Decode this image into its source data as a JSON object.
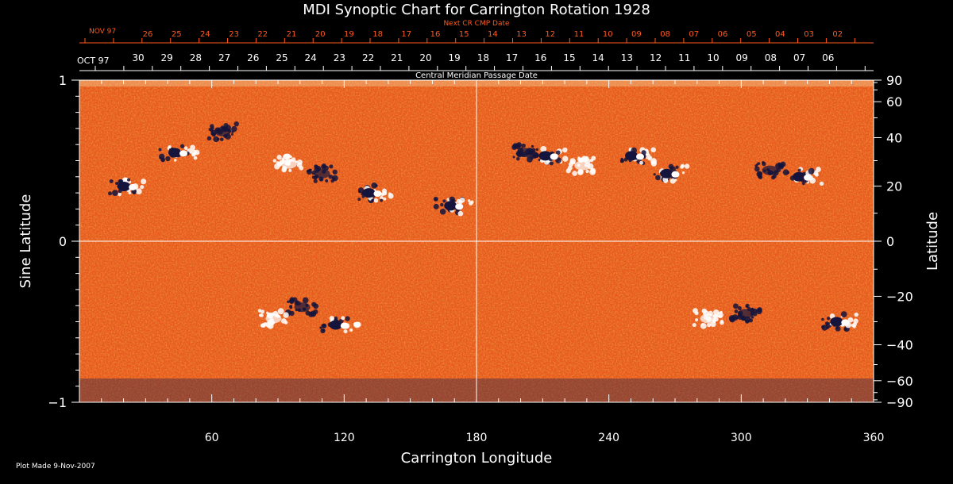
{
  "colors": {
    "background": "#000000",
    "text": "#ffffff",
    "next_cr": "#ff5a1e",
    "map_base": "#e8581e",
    "positive_polarity": "#ffffff",
    "negative_polarity": "#14143c"
  },
  "chart_data": {
    "type": "heatmap",
    "title": "MDI Synoptic Chart for Carrington Rotation 1928",
    "xlabel": "Carrington Longitude",
    "ylabel_left": "Sine Latitude",
    "ylabel_right": "Latitude",
    "xlim": [
      0,
      360
    ],
    "ylim": [
      -1,
      1
    ],
    "x_ticks": [
      60,
      120,
      180,
      240,
      300,
      360
    ],
    "y_ticks_left": [
      {
        "value": 1,
        "label": "1"
      },
      {
        "value": 0,
        "label": "0"
      },
      {
        "value": -1,
        "label": "−1"
      }
    ],
    "y_ticks_right": [
      90,
      60,
      40,
      20,
      0,
      -20,
      -40,
      -60,
      -90
    ],
    "y_ticks_right_labels": [
      "90",
      "60",
      "40",
      "20",
      "0",
      "−20",
      "−40",
      "−60",
      "−90"
    ],
    "next_cr_label": "Next CR CMP Date",
    "next_cr_month": "NOV 97",
    "next_cr_dates": [
      "26",
      "25",
      "24",
      "23",
      "22",
      "21",
      "20",
      "19",
      "18",
      "17",
      "16",
      "15",
      "14",
      "13",
      "12",
      "11",
      "10",
      "09",
      "08",
      "07",
      "06",
      "05",
      "04",
      "03",
      "02"
    ],
    "cmp_month": "OCT 97",
    "cmp_dates": [
      "30",
      "29",
      "28",
      "27",
      "26",
      "25",
      "24",
      "23",
      "22",
      "21",
      "20",
      "19",
      "18",
      "17",
      "16",
      "15",
      "14",
      "13",
      "12",
      "11",
      "10",
      "09",
      "08",
      "07",
      "06"
    ],
    "cmp_label": "Central Meridian Passage Date",
    "plot_made": "Plot Made  9-Nov-2007",
    "active_regions": [
      {
        "lon": 22,
        "sinlat": 0.34,
        "polarity": "bipole"
      },
      {
        "lon": 45,
        "sinlat": 0.55,
        "polarity": "bipole"
      },
      {
        "lon": 65,
        "sinlat": 0.68,
        "polarity": "negative"
      },
      {
        "lon": 95,
        "sinlat": 0.48,
        "polarity": "positive"
      },
      {
        "lon": 110,
        "sinlat": 0.42,
        "polarity": "negative"
      },
      {
        "lon": 133,
        "sinlat": 0.3,
        "polarity": "bipole"
      },
      {
        "lon": 170,
        "sinlat": 0.22,
        "polarity": "bipole"
      },
      {
        "lon": 203,
        "sinlat": 0.55,
        "polarity": "negative"
      },
      {
        "lon": 213,
        "sinlat": 0.53,
        "polarity": "bipole"
      },
      {
        "lon": 228,
        "sinlat": 0.47,
        "polarity": "positive"
      },
      {
        "lon": 252,
        "sinlat": 0.53,
        "polarity": "bipole"
      },
      {
        "lon": 268,
        "sinlat": 0.42,
        "polarity": "bipole"
      },
      {
        "lon": 313,
        "sinlat": 0.44,
        "polarity": "negative"
      },
      {
        "lon": 328,
        "sinlat": 0.4,
        "polarity": "bipole"
      },
      {
        "lon": 101,
        "sinlat": -0.41,
        "polarity": "negative"
      },
      {
        "lon": 88,
        "sinlat": -0.48,
        "polarity": "positive"
      },
      {
        "lon": 118,
        "sinlat": -0.52,
        "polarity": "bipole"
      },
      {
        "lon": 285,
        "sinlat": -0.48,
        "polarity": "positive"
      },
      {
        "lon": 302,
        "sinlat": -0.45,
        "polarity": "negative"
      },
      {
        "lon": 345,
        "sinlat": -0.5,
        "polarity": "bipole"
      }
    ]
  }
}
